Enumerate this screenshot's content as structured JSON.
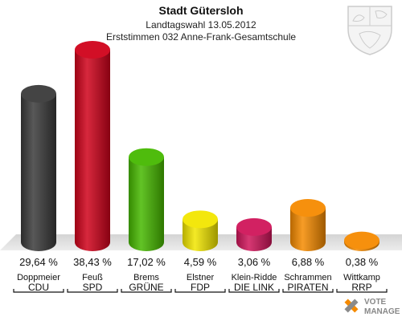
{
  "header": {
    "title": "Stadt Gütersloh",
    "subtitle": "Landtagswahl 13.05.2012",
    "subtitle2": "Erststimmen 032 Anne-Frank-Gesamtschule"
  },
  "chart_data": {
    "type": "bar",
    "title": "Stadt Gütersloh",
    "subtitle": "Landtagswahl 13.05.2012 / Erststimmen 032 Anne-Frank-Gesamtschule",
    "categories": [
      "CDU",
      "SPD",
      "GRÜNE",
      "FDP",
      "DIE LINKE",
      "PIRATEN",
      "RRP"
    ],
    "candidates": [
      "Doppmeier",
      "Feuß",
      "Brems",
      "Elstner",
      "Klein-Ridde",
      "Schrammen",
      "Wittkamp"
    ],
    "values": [
      29.64,
      38.43,
      17.02,
      4.59,
      3.06,
      6.88,
      0.38
    ],
    "value_labels": [
      "29,64 %",
      "38,43 %",
      "17,02 %",
      "4,59 %",
      "3,06 %",
      "6,88 %",
      "0,38 %"
    ],
    "party_labels": [
      "CDU",
      "SPD",
      "GRÜNE",
      "FDP",
      "DIE LINK",
      "PIRATEN",
      "RRP"
    ],
    "colors": [
      "#3a3a3a",
      "#d0021b",
      "#46b800",
      "#f2e600",
      "#d0155a",
      "#f58a00",
      "#f58a00"
    ],
    "ylim": [
      0,
      38.43
    ],
    "grid": false,
    "legend": "none"
  },
  "footer": {
    "logo_text_1": "VOTE",
    "logo_text_2": "MANAGER"
  }
}
